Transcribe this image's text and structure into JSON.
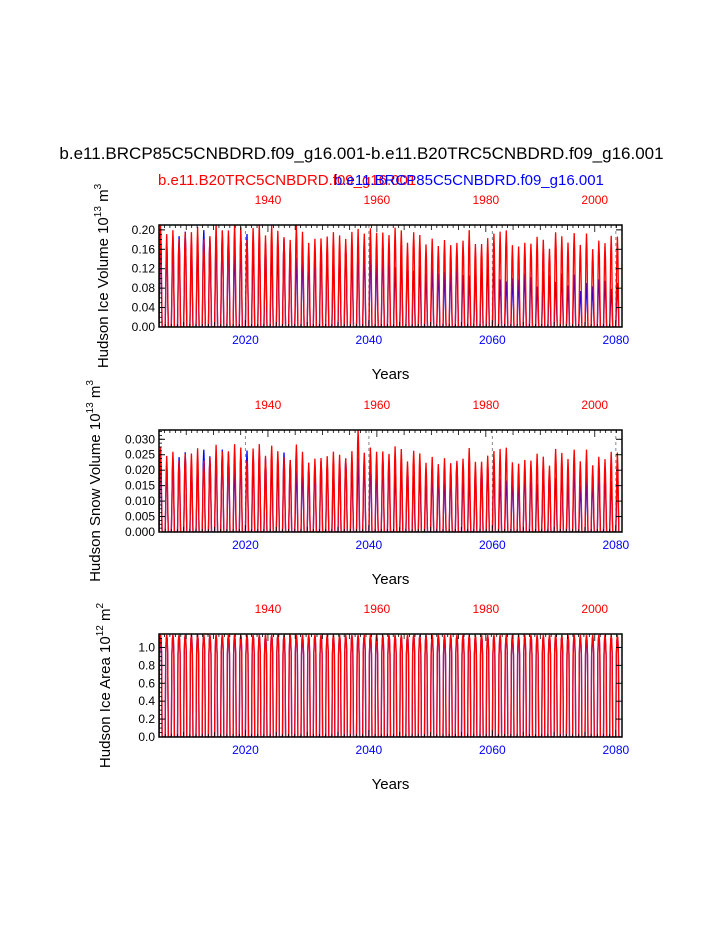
{
  "title": "b.e11.BRCP85C5CNBDRD.f09_g16.001-b.e11.B20TRC5CNBDRD.f09_g16.001",
  "subtitle_red": "b.e11.B20TRC5CNBDRD.f09_g16.001",
  "subtitle_blue": "b.e11.BRCP85C5CNBDRD.f09_g16.001",
  "colors": {
    "red_series": "#ff0000",
    "blue_series": "#0000ff",
    "axis": "#000000",
    "grid": "#888888"
  },
  "chart_data": [
    {
      "type": "line",
      "name": "ice-volume",
      "ylabel": "Hudson Ice Volume 10^13 m^3",
      "xlabel": "Years",
      "ylim": [
        0,
        0.21
      ],
      "yticks": [
        "0.00",
        "0.04",
        "0.08",
        "0.12",
        "0.16",
        "0.20"
      ],
      "ytick_values": [
        0,
        0.04,
        0.08,
        0.12,
        0.16,
        0.2
      ],
      "bottom_axis": {
        "label_color": "blue",
        "range": [
          2006,
          2081
        ],
        "ticks": [
          "2020",
          "2040",
          "2060",
          "2080"
        ],
        "tick_values": [
          2020,
          2040,
          2060,
          2080
        ]
      },
      "top_axis": {
        "label_color": "red",
        "range": [
          1920,
          2005
        ],
        "ticks": [
          "1940",
          "1960",
          "1980",
          "2000"
        ],
        "tick_values": [
          1940,
          1960,
          1980,
          2000
        ]
      },
      "grid_dashed_at_bottom_years": [
        2020,
        2040,
        2060,
        2080
      ],
      "red_series": {
        "name": "b.e11.B20TRC5CNBDRD.f09_g16.001",
        "annual_max_start": 0.2,
        "annual_max_end": 0.175,
        "annual_min": 0.0
      },
      "blue_series": {
        "name": "b.e11.BRCP85C5CNBDRD.f09_g16.001",
        "annual_max_start": 0.195,
        "annual_max_end": 0.08,
        "annual_min": 0.0
      }
    },
    {
      "type": "line",
      "name": "snow-volume",
      "ylabel": "Hudson Snow Volume 10^13 m^3",
      "xlabel": "Years",
      "ylim": [
        0,
        0.033
      ],
      "yticks": [
        "0.000",
        "0.005",
        "0.010",
        "0.015",
        "0.020",
        "0.025",
        "0.030"
      ],
      "ytick_values": [
        0,
        0.005,
        0.01,
        0.015,
        0.02,
        0.025,
        0.03
      ],
      "bottom_axis": {
        "label_color": "blue",
        "range": [
          2006,
          2081
        ],
        "ticks": [
          "2020",
          "2040",
          "2060",
          "2080"
        ],
        "tick_values": [
          2020,
          2040,
          2060,
          2080
        ]
      },
      "top_axis": {
        "label_color": "red",
        "range": [
          1920,
          2005
        ],
        "ticks": [
          "1940",
          "1960",
          "1980",
          "2000"
        ],
        "tick_values": [
          1940,
          1960,
          1980,
          2000
        ]
      },
      "grid_dashed_at_bottom_years": [
        2020,
        2040,
        2060,
        2080
      ],
      "red_series": {
        "name": "b.e11.B20TRC5CNBDRD.f09_g16.001",
        "annual_max_start": 0.026,
        "annual_max_end": 0.024,
        "peak_value": 0.033,
        "annual_min": 0.0
      },
      "blue_series": {
        "name": "b.e11.BRCP85C5CNBDRD.f09_g16.001",
        "annual_max_start": 0.025,
        "annual_max_end": 0.017,
        "annual_min": 0.0
      }
    },
    {
      "type": "line",
      "name": "ice-area",
      "ylabel": "Hudson Ice Area 10^12 m^2",
      "xlabel": "Years",
      "ylim": [
        0,
        1.15
      ],
      "yticks": [
        "0.0",
        "0.2",
        "0.4",
        "0.6",
        "0.8",
        "1.0"
      ],
      "ytick_values": [
        0,
        0.2,
        0.4,
        0.6,
        0.8,
        1.0
      ],
      "bottom_axis": {
        "label_color": "blue",
        "range": [
          2006,
          2081
        ],
        "ticks": [
          "2020",
          "2040",
          "2060",
          "2080"
        ],
        "tick_values": [
          2020,
          2040,
          2060,
          2080
        ]
      },
      "top_axis": {
        "label_color": "red",
        "range": [
          1920,
          2005
        ],
        "ticks": [
          "1940",
          "1960",
          "1980",
          "2000"
        ],
        "tick_values": [
          1940,
          1960,
          1980,
          2000
        ]
      },
      "grid_dashed_at_bottom_years": [],
      "red_series": {
        "name": "b.e11.B20TRC5CNBDRD.f09_g16.001",
        "annual_max_start": 1.14,
        "annual_max_end": 1.14,
        "annual_min": 0.0
      },
      "blue_series": {
        "name": "b.e11.BRCP85C5CNBDRD.f09_g16.001",
        "annual_max_start": 1.14,
        "annual_max_end": 1.12,
        "annual_min": 0.0
      }
    }
  ]
}
